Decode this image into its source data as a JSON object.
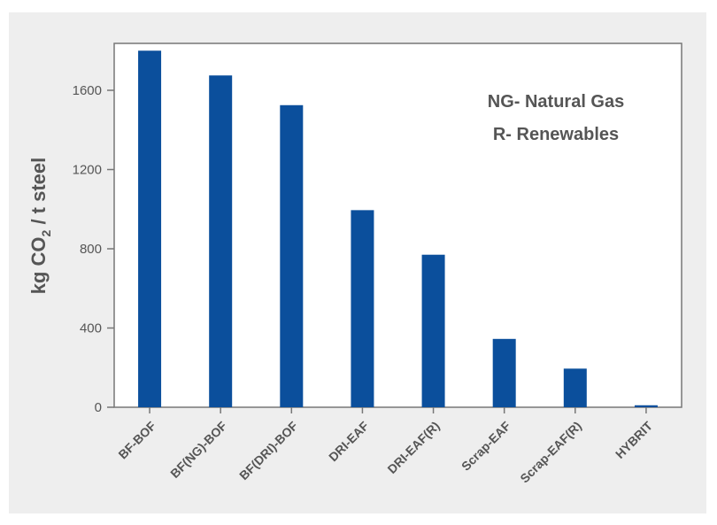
{
  "chart_data": {
    "type": "bar",
    "title": "",
    "xlabel": "",
    "ylabel": {
      "prefix": "kg CO",
      "subscript": "2",
      "suffix": " / t steel"
    },
    "categories": [
      "BF-BOF",
      "BF(NG)-BOF",
      "BF(DRI)-BOF",
      "DRI-EAF",
      "DRI-EAF(R)",
      "Scrap-EAF",
      "Scrap-EAF(R)",
      "HYBRIT"
    ],
    "values": [
      1800,
      1675,
      1525,
      995,
      770,
      345,
      195,
      10
    ],
    "ylim": [
      0,
      1800
    ],
    "yticks": [
      0,
      400,
      800,
      1200,
      1600
    ],
    "bar_color": "#0b4f9c",
    "annotations": [
      "NG- Natural Gas",
      "R- Renewables"
    ]
  }
}
